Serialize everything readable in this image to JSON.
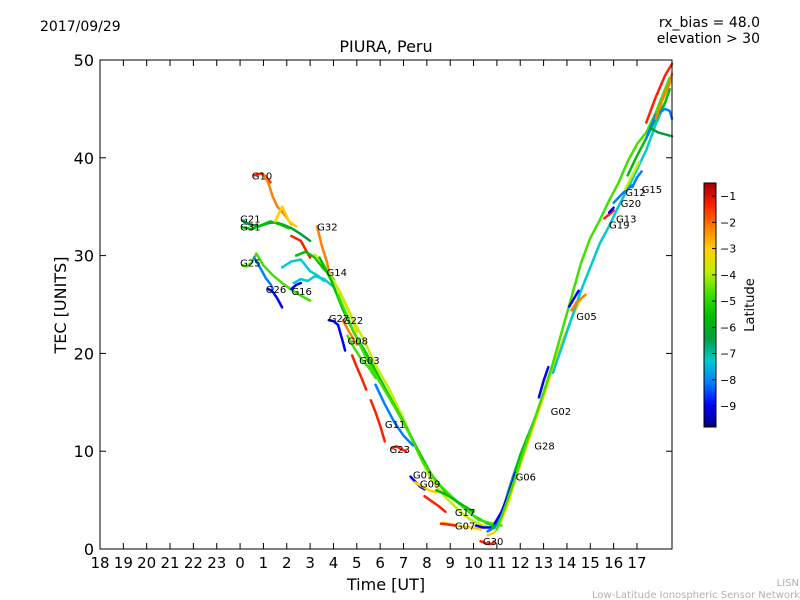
{
  "header": {
    "date": "2017/09/29",
    "rx_bias": "rx_bias = 48.0",
    "elevation": "elevation > 30",
    "title": "PIURA, Peru"
  },
  "credit": {
    "line1": "LISN",
    "line2": "Low-Latitude Ionospheric Sensor Network"
  },
  "colorbar": {
    "label": "Latitude",
    "ticks": [
      -1,
      -2,
      -3,
      -4,
      -5,
      -6,
      -7,
      -8,
      -9
    ],
    "range": [
      -9.8,
      -0.5
    ],
    "colors": [
      "#00007f",
      "#0000ff",
      "#007fff",
      "#00cccc",
      "#00a040",
      "#00c000",
      "#40e000",
      "#c0f000",
      "#ffd000",
      "#ff8000",
      "#ff2000",
      "#a00000"
    ]
  },
  "chart_data": {
    "type": "line",
    "title": "PIURA, Peru",
    "xlabel": "Time [UT]",
    "ylabel": "TEC [UNITS]",
    "xlim": [
      18,
      42.5
    ],
    "ylim": [
      0,
      50
    ],
    "x_tick_positions": [
      18,
      19,
      20,
      21,
      22,
      23,
      24,
      25,
      26,
      27,
      28,
      29,
      30,
      31,
      32,
      33,
      34,
      35,
      36,
      37,
      38,
      39,
      40,
      41
    ],
    "x_tick_labels": [
      "18",
      "19",
      "20",
      "21",
      "22",
      "23",
      "0",
      "1",
      "2",
      "3",
      "4",
      "5",
      "6",
      "7",
      "8",
      "9",
      "10",
      "11",
      "12",
      "13",
      "14",
      "15",
      "16",
      "17"
    ],
    "y_ticks": [
      0,
      10,
      20,
      30,
      40,
      50
    ],
    "series": [
      {
        "name": "G10",
        "color": "#ff2000",
        "x": [
          24.6,
          24.9,
          25.1,
          25.3
        ],
        "y": [
          38.2,
          38.4,
          38.1,
          37.5
        ]
      },
      {
        "name": "",
        "color": "#ff8000",
        "x": [
          25.0,
          25.2,
          25.4,
          25.6,
          25.9,
          26.2
        ],
        "y": [
          38.3,
          37.5,
          36,
          35,
          34.2,
          33.2
        ]
      },
      {
        "name": "G21",
        "color": "#00a040",
        "x": [
          24.1,
          24.4,
          24.8,
          25.2,
          25.5,
          25.8,
          26.2,
          26.6,
          27.0
        ],
        "y": [
          33.6,
          33.2,
          33.0,
          33.3,
          33.4,
          33.2,
          32.8,
          32.2,
          31.5
        ]
      },
      {
        "name": "G31",
        "color": "#00c000",
        "x": [
          24.1,
          24.5,
          24.9,
          25.3,
          25.7,
          26.1
        ],
        "y": [
          32.9,
          32.7,
          33.1,
          33.5,
          33.2,
          32.8
        ]
      },
      {
        "name": "",
        "color": "#ffd000",
        "x": [
          25.5,
          25.8,
          26.1,
          26.4
        ],
        "y": [
          33.5,
          35,
          33.5,
          33
        ]
      },
      {
        "name": "",
        "color": "#ff2000",
        "x": [
          26.2,
          26.6,
          27.0
        ],
        "y": [
          32.0,
          31.5,
          29.8
        ]
      },
      {
        "name": "G25",
        "color": "#40e000",
        "x": [
          24.1,
          24.3,
          24.5,
          24.7,
          25.0,
          25.4,
          25.8,
          26.2,
          26.6,
          27.0
        ],
        "y": [
          29.0,
          28.9,
          29.3,
          30.2,
          29.0,
          28.0,
          27.2,
          26.5,
          25.9,
          25.4
        ]
      },
      {
        "name": "G26",
        "color": "#0000ff",
        "x": [
          25.2,
          25.4,
          25.6,
          25.8
        ],
        "y": [
          26.6,
          26.3,
          25.6,
          24.7
        ]
      },
      {
        "name": "",
        "color": "#007fff",
        "x": [
          24.6,
          24.9,
          25.1,
          25.3,
          25.4
        ],
        "y": [
          29.8,
          28.6,
          27.7,
          27.1,
          26.6
        ]
      },
      {
        "name": "",
        "color": "#00cccc",
        "x": [
          25.8,
          26.2,
          26.6,
          27.0,
          27.3,
          27.6
        ],
        "y": [
          28.8,
          29.4,
          29.6,
          28.4,
          28.0,
          27.4
        ]
      },
      {
        "name": "G16",
        "color": "#00cccc",
        "x": [
          26.3,
          26.6,
          26.9,
          27.2,
          27.6,
          28.0
        ],
        "y": [
          27.2,
          27.6,
          27.4,
          27.9,
          27.6,
          26.8
        ]
      },
      {
        "name": "",
        "color": "#0000ff",
        "x": [
          26.2,
          26.4,
          26.6
        ],
        "y": [
          26.6,
          27.0,
          27.2
        ]
      },
      {
        "name": "",
        "color": "#00c000",
        "x": [
          26.4,
          26.8,
          27.2,
          27.6,
          28.0
        ],
        "y": [
          30.0,
          30.4,
          29.8,
          28.6,
          27.6
        ]
      },
      {
        "name": "G32",
        "color": "#ff8000",
        "x": [
          27.3,
          27.5,
          27.7,
          27.9
        ],
        "y": [
          33.0,
          31.0,
          29.5,
          27.5
        ]
      },
      {
        "name": "G14",
        "color": "#ffd000",
        "x": [
          27.7,
          27.9,
          28.1,
          28.3,
          28.5,
          28.7,
          29.0
        ],
        "y": [
          28.5,
          27.8,
          27.0,
          26.2,
          25.2,
          24.2,
          22.2
        ]
      },
      {
        "name": "G27",
        "color": "#0000ff",
        "x": [
          27.8,
          28.0,
          28.2,
          28.4,
          28.5
        ],
        "y": [
          23.4,
          23.3,
          22.9,
          21.2,
          20.3
        ]
      },
      {
        "name": "G22",
        "color": "#ff8000",
        "x": [
          28.4,
          28.6,
          28.8,
          29.0
        ],
        "y": [
          23.4,
          22.5,
          21.7,
          20.9
        ]
      },
      {
        "name": "G08",
        "color": "#40e000",
        "x": [
          28.6,
          28.9,
          29.2,
          29.5,
          29.8
        ],
        "y": [
          21.8,
          20.5,
          19.4,
          18.6,
          17.5
        ]
      },
      {
        "name": "G03",
        "color": "#ff2000",
        "x": [
          28.8,
          29.0,
          29.2,
          29.4
        ],
        "y": [
          19.8,
          18.6,
          17.5,
          16.3
        ]
      },
      {
        "name": "",
        "color": "#c0f000",
        "x": [
          27.2,
          27.6,
          28.0,
          28.4,
          28.8,
          29.3,
          29.8,
          30.4,
          31.0,
          31.6,
          32.2,
          32.8,
          33.3,
          33.8,
          34.3,
          34.8
        ],
        "y": [
          30.1,
          29.0,
          27.4,
          25.6,
          23.6,
          21.4,
          18.8,
          16.3,
          13.3,
          10.0,
          7.0,
          5.3,
          4.1,
          3.1,
          2.5,
          2.1
        ]
      },
      {
        "name": "",
        "color": "#00c000",
        "x": [
          27.4,
          27.9,
          28.4,
          28.9,
          29.4,
          29.9,
          30.4,
          31.0,
          31.6,
          32.2,
          32.8,
          33.4,
          34.0,
          34.6,
          34.9
        ],
        "y": [
          29.8,
          27.5,
          24.5,
          22.0,
          20.0,
          17.8,
          15.6,
          13.0,
          10.2,
          7.6,
          5.8,
          4.6,
          3.4,
          2.6,
          2.4
        ]
      },
      {
        "name": "",
        "color": "#40e000",
        "x": [
          28.2,
          28.8,
          29.4,
          30.0,
          30.6,
          31.2,
          31.8,
          32.4,
          33.0,
          33.6,
          34.2,
          34.8,
          35.2
        ],
        "y": [
          26.0,
          22.6,
          19.5,
          17.0,
          14.6,
          12.0,
          9.0,
          6.9,
          5.5,
          4.2,
          3.0,
          2.6,
          2.4
        ]
      },
      {
        "name": "G11",
        "color": "#007fff",
        "x": [
          29.8,
          30.2,
          30.6,
          31.0,
          31.4
        ],
        "y": [
          16.8,
          14.8,
          13.0,
          11.6,
          10.6
        ]
      },
      {
        "name": "",
        "color": "#ff2000",
        "x": [
          29.6,
          29.8,
          30.0,
          30.2
        ],
        "y": [
          15.2,
          14.0,
          12.6,
          11.0
        ]
      },
      {
        "name": "G23",
        "color": "#ff2000",
        "x": [
          30.5,
          30.7,
          30.9,
          31.1
        ],
        "y": [
          10.3,
          10.5,
          10.2,
          10.0
        ]
      },
      {
        "name": "G01",
        "color": "#0000ff",
        "x": [
          31.3,
          31.5,
          31.7,
          31.9
        ],
        "y": [
          7.4,
          6.9,
          6.4,
          6.1
        ]
      },
      {
        "name": "G09",
        "color": "#ffd000",
        "x": [
          31.5,
          31.8,
          32.1,
          32.4
        ],
        "y": [
          6.8,
          6.4,
          6.0,
          5.8
        ]
      },
      {
        "name": "",
        "color": "#ff2000",
        "x": [
          31.9,
          32.2,
          32.5,
          32.8
        ],
        "y": [
          5.4,
          4.9,
          4.4,
          3.8
        ]
      },
      {
        "name": "G17",
        "color": "#00c000",
        "x": [
          32.4,
          32.8,
          33.2,
          33.6,
          34.0
        ],
        "y": [
          6.0,
          5.6,
          5.0,
          4.4,
          3.8
        ]
      },
      {
        "name": "G07",
        "color": "#ffd000",
        "x": [
          32.7,
          33.1,
          33.5,
          33.9,
          34.3
        ],
        "y": [
          2.7,
          2.5,
          2.3,
          2.2,
          2.0
        ]
      },
      {
        "name": "",
        "color": "#ff2000",
        "x": [
          32.6,
          32.9,
          33.2
        ],
        "y": [
          2.6,
          2.5,
          2.4
        ]
      },
      {
        "name": "G30",
        "color": "#ff2000",
        "x": [
          34.3,
          34.5,
          34.7,
          34.9
        ],
        "y": [
          0.8,
          0.6,
          0.5,
          0.7
        ]
      },
      {
        "name": "",
        "color": "#0000ff",
        "x": [
          34.1,
          34.4,
          34.7,
          34.9
        ],
        "y": [
          2.4,
          2.2,
          2.2,
          2.3
        ]
      },
      {
        "name": "G06",
        "color": "#007fff",
        "x": [
          34.6,
          34.9,
          35.2,
          35.5,
          35.8,
          36.1,
          36.4,
          36.8,
          37.2
        ],
        "y": [
          1.8,
          2.2,
          3.6,
          6.0,
          8.2,
          10.2,
          12.0,
          14.4,
          17.4
        ]
      },
      {
        "name": "",
        "color": "#00c000",
        "x": [
          34.8,
          35.1,
          35.4,
          35.7,
          36.0,
          36.3,
          36.6,
          37.0
        ],
        "y": [
          2.2,
          3.2,
          5.0,
          7.2,
          9.6,
          11.4,
          13.0,
          15.8
        ]
      },
      {
        "name": "G28",
        "color": "#0000ff",
        "x": [
          34.9,
          35.2,
          35.5,
          35.8
        ],
        "y": [
          2.6,
          3.8,
          5.6,
          7.8
        ]
      },
      {
        "name": "G02",
        "color": "#0000ff",
        "x": [
          36.8,
          37.0,
          37.2
        ],
        "y": [
          15.5,
          17.2,
          18.6
        ]
      },
      {
        "name": "",
        "color": "#ffd000",
        "x": [
          34.6,
          34.9,
          35.2,
          35.5,
          35.8,
          36.2,
          36.6,
          37.0,
          37.4,
          37.8,
          38.2,
          38.6
        ],
        "y": [
          1.4,
          1.7,
          3.0,
          4.8,
          7.2,
          10.0,
          12.8,
          15.6,
          18.5,
          21.2,
          23.6,
          25.6
        ]
      },
      {
        "name": "",
        "color": "#40e000",
        "x": [
          35.0,
          35.4,
          35.8,
          36.2,
          36.6,
          37.0,
          37.4,
          37.8,
          38.2,
          38.6,
          39.0,
          39.4,
          39.8,
          40.2,
          40.6,
          41.0,
          41.4,
          41.8,
          42.2,
          42.4
        ],
        "y": [
          2.0,
          4.6,
          7.4,
          10.4,
          13.2,
          16.0,
          19.0,
          22.4,
          25.8,
          29.2,
          31.8,
          33.6,
          35.6,
          37.4,
          39.6,
          41.4,
          42.6,
          44.6,
          47.0,
          48.2
        ]
      },
      {
        "name": "",
        "color": "#00cccc",
        "x": [
          37.4,
          37.8,
          38.2,
          38.6,
          39.0,
          39.4,
          39.8,
          40.2,
          40.6,
          41.0,
          41.4,
          41.8,
          42.2
        ],
        "y": [
          18.0,
          20.8,
          23.6,
          26.4,
          28.8,
          31.2,
          33.0,
          35.0,
          36.8,
          38.8,
          40.8,
          43.4,
          45.6
        ]
      },
      {
        "name": "G05",
        "color": "#ff8000",
        "x": [
          38.2,
          38.4,
          38.6,
          38.8
        ],
        "y": [
          24.4,
          25.2,
          25.6,
          26.0
        ]
      },
      {
        "name": "",
        "color": "#0000ff",
        "x": [
          38.1,
          38.3,
          38.5
        ],
        "y": [
          24.8,
          25.6,
          26.4
        ]
      },
      {
        "name": "G19",
        "color": "#ff2000",
        "x": [
          39.6,
          39.8,
          40.0
        ],
        "y": [
          33.8,
          34.2,
          34.6
        ]
      },
      {
        "name": "G13",
        "color": "#0000ff",
        "x": [
          39.8,
          40.0
        ],
        "y": [
          34.4,
          34.9
        ]
      },
      {
        "name": "G20",
        "color": "#007fff",
        "x": [
          40.0,
          40.4,
          40.8
        ],
        "y": [
          35.4,
          36.4,
          37.2
        ]
      },
      {
        "name": "G12",
        "color": "#c0f000",
        "x": [
          40.5,
          40.8,
          41.1
        ],
        "y": [
          36.8,
          38.2,
          39.6
        ]
      },
      {
        "name": "G15",
        "color": "#007fff",
        "x": [
          40.8,
          41.0,
          41.2
        ],
        "y": [
          37.0,
          38.0,
          38.6
        ]
      },
      {
        "name": "",
        "color": "#00c000",
        "x": [
          40.6,
          41.0,
          41.4,
          41.8,
          42.2,
          42.4
        ],
        "y": [
          38.2,
          40.2,
          42.0,
          44.0,
          45.6,
          47.0
        ]
      },
      {
        "name": "",
        "color": "#007fff",
        "x": [
          41.4,
          41.8,
          42.2,
          42.4,
          42.5
        ],
        "y": [
          42.0,
          44.4,
          45.0,
          44.8,
          44.0
        ]
      },
      {
        "name": "",
        "color": "#00a040",
        "x": [
          41.6,
          41.9,
          42.2,
          42.5
        ],
        "y": [
          43.0,
          42.6,
          42.4,
          42.2
        ]
      },
      {
        "name": "",
        "color": "#ff2000",
        "x": [
          41.4,
          41.8,
          42.2,
          42.5
        ],
        "y": [
          43.6,
          46.2,
          48.4,
          49.6
        ]
      },
      {
        "name": "",
        "color": "#ff8000",
        "x": [
          41.8,
          42.1,
          42.4,
          42.5
        ],
        "y": [
          44.0,
          46.0,
          47.6,
          48.6
        ]
      }
    ],
    "labels": [
      {
        "text": "G10",
        "x": 24.5,
        "y": 38.2
      },
      {
        "text": "G21",
        "x": 24.0,
        "y": 33.8
      },
      {
        "text": "G31",
        "x": 24.0,
        "y": 33.0
      },
      {
        "text": "G25",
        "x": 24.0,
        "y": 29.3
      },
      {
        "text": "G26",
        "x": 25.1,
        "y": 26.6
      },
      {
        "text": "G16",
        "x": 26.2,
        "y": 26.4
      },
      {
        "text": "G32",
        "x": 27.3,
        "y": 33.0
      },
      {
        "text": "G14",
        "x": 27.7,
        "y": 28.3
      },
      {
        "text": "G27",
        "x": 27.8,
        "y": 23.6
      },
      {
        "text": "G22",
        "x": 28.4,
        "y": 23.4
      },
      {
        "text": "G08",
        "x": 28.6,
        "y": 21.3
      },
      {
        "text": "G03",
        "x": 29.1,
        "y": 19.3
      },
      {
        "text": "G11",
        "x": 30.2,
        "y": 12.8
      },
      {
        "text": "G23",
        "x": 30.4,
        "y": 10.2
      },
      {
        "text": "G01",
        "x": 31.4,
        "y": 7.6
      },
      {
        "text": "G09",
        "x": 31.7,
        "y": 6.7
      },
      {
        "text": "G17",
        "x": 33.2,
        "y": 3.8
      },
      {
        "text": "G07",
        "x": 33.2,
        "y": 2.4
      },
      {
        "text": "G30",
        "x": 34.4,
        "y": 0.8
      },
      {
        "text": "G06",
        "x": 35.8,
        "y": 7.4
      },
      {
        "text": "G28",
        "x": 36.6,
        "y": 10.6
      },
      {
        "text": "G02",
        "x": 37.3,
        "y": 14.1
      },
      {
        "text": "G05",
        "x": 38.4,
        "y": 23.8
      },
      {
        "text": "G19",
        "x": 39.8,
        "y": 33.2
      },
      {
        "text": "G13",
        "x": 40.1,
        "y": 33.8
      },
      {
        "text": "G20",
        "x": 40.3,
        "y": 35.4
      },
      {
        "text": "G12",
        "x": 40.5,
        "y": 36.5
      },
      {
        "text": "G15",
        "x": 41.2,
        "y": 36.8
      }
    ]
  }
}
